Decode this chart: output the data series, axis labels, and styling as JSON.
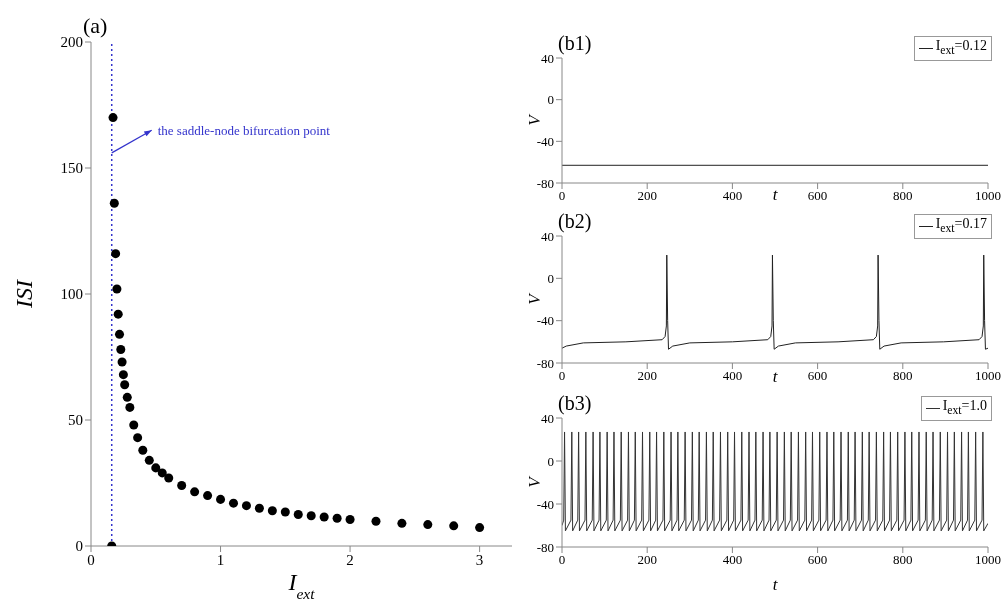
{
  "chart_data": [
    {
      "type": "scatter",
      "title": "(a)",
      "xlabel": "I$_{ext}$",
      "ylabel": "ISI",
      "color": "#000000",
      "marker": "circle",
      "x": [
        0.16,
        0.17,
        0.18,
        0.19,
        0.2,
        0.21,
        0.22,
        0.23,
        0.24,
        0.25,
        0.26,
        0.28,
        0.3,
        0.33,
        0.36,
        0.4,
        0.45,
        0.5,
        0.55,
        0.6,
        0.7,
        0.8,
        0.9,
        1.0,
        1.1,
        1.2,
        1.3,
        1.4,
        1.5,
        1.6,
        1.7,
        1.8,
        1.9,
        2.0,
        2.2,
        2.4,
        2.6,
        2.8,
        3.0
      ],
      "values": [
        0,
        170,
        136,
        116,
        102,
        92,
        84,
        78,
        73,
        68,
        64,
        59,
        55,
        48,
        43,
        38,
        34,
        31,
        29,
        27,
        24,
        21.5,
        20,
        18.5,
        17,
        16,
        15,
        14,
        13.5,
        12.5,
        12,
        11.5,
        11,
        10.5,
        9.8,
        9,
        8.5,
        8,
        7.3
      ],
      "xlim": [
        0,
        3.25
      ],
      "xticks": [
        0,
        1,
        2,
        3
      ],
      "ylim": [
        0,
        200
      ],
      "yticks": [
        0,
        50,
        100,
        150,
        200
      ],
      "ref_lines": [
        {
          "axis": "x",
          "value": 0.16,
          "label": "the saddle-node bifurcation point",
          "color": "#3333cc",
          "line_style": "dotted"
        }
      ]
    },
    {
      "type": "line",
      "title": "(b1)",
      "xlabel": "t",
      "ylabel": "V",
      "xlim": [
        0,
        1000
      ],
      "xticks": [
        0,
        200,
        400,
        600,
        800,
        1000
      ],
      "ylim": [
        -80,
        40
      ],
      "yticks": [
        -80,
        -40,
        0,
        40
      ],
      "legend": "top right",
      "line_style": "solid",
      "series": [
        {
          "name": "I$_{ext}$=0.12",
          "color": "#222222",
          "x": [
            0,
            1000
          ],
          "values": [
            -63,
            -63
          ]
        }
      ]
    },
    {
      "type": "line",
      "title": "(b2)",
      "xlabel": "t",
      "ylabel": "V",
      "xlim": [
        0,
        1000
      ],
      "xticks": [
        0,
        200,
        400,
        600,
        800,
        1000
      ],
      "ylim": [
        -80,
        40
      ],
      "yticks": [
        -80,
        -40,
        0,
        40
      ],
      "legend": "top right",
      "line_style": "solid",
      "series": [
        {
          "name": "I$_{ext}$=0.17",
          "color": "#222222",
          "x": [
            0,
            10,
            50,
            150,
            235,
            242,
            245,
            246,
            248,
            250,
            260,
            300,
            400,
            483,
            490,
            493,
            494,
            496,
            498,
            508,
            548,
            648,
            731,
            738,
            741,
            742,
            744,
            746,
            756,
            796,
            896,
            979,
            986,
            989,
            990,
            992,
            994,
            1000
          ],
          "values": [
            -66,
            -64,
            -61,
            -60,
            -58,
            -55,
            -45,
            22,
            -40,
            -67,
            -64,
            -61,
            -60,
            -58,
            -55,
            -45,
            22,
            -40,
            -67,
            -64,
            -61,
            -60,
            -58,
            -55,
            -45,
            22,
            -40,
            -67,
            -64,
            -61,
            -60,
            -58,
            -55,
            -45,
            22,
            -40,
            -67,
            -66
          ]
        }
      ]
    },
    {
      "type": "line",
      "title": "(b3)",
      "xlabel": "t",
      "ylabel": "V",
      "xlim": [
        0,
        1000
      ],
      "xticks": [
        0,
        200,
        400,
        600,
        800,
        1000
      ],
      "ylim": [
        -80,
        40
      ],
      "yticks": [
        -80,
        -40,
        0,
        40
      ],
      "legend": "top right",
      "line_style": "solid",
      "series": [
        {
          "name": "I$_{ext}$=1.0",
          "color": "#333333",
          "x": [
            0,
            4,
            6,
            8,
            21,
            23,
            25,
            37,
            39,
            41,
            54,
            56,
            58,
            71,
            73,
            75,
            87,
            89,
            91,
            104,
            106,
            108,
            120,
            122,
            124,
            137,
            139,
            141,
            154,
            156,
            158,
            170,
            172,
            174,
            187,
            189,
            191,
            204,
            206,
            208,
            220,
            222,
            224,
            237,
            239,
            241,
            254,
            256,
            258,
            270,
            272,
            274,
            287,
            289,
            291,
            304,
            306,
            308,
            320,
            322,
            324,
            337,
            339,
            341,
            353,
            355,
            357,
            370,
            372,
            374,
            387,
            389,
            391,
            403,
            405,
            407,
            420,
            422,
            424,
            437,
            439,
            441,
            453,
            455,
            457,
            470,
            472,
            474,
            486,
            488,
            490,
            503,
            505,
            507,
            520,
            522,
            524,
            536,
            538,
            540,
            553,
            555,
            557,
            570,
            572,
            574,
            586,
            588,
            590,
            603,
            605,
            607,
            620,
            622,
            624,
            636,
            638,
            640,
            653,
            655,
            657,
            670,
            672,
            674,
            686,
            688,
            690,
            703,
            705,
            707,
            719,
            721,
            723,
            736,
            738,
            740,
            753,
            755,
            757,
            769,
            771,
            773,
            786,
            788,
            790,
            803,
            805,
            807,
            819,
            821,
            823,
            836,
            838,
            840,
            853,
            855,
            857,
            869,
            871,
            873,
            886,
            888,
            890,
            903,
            905,
            907,
            919,
            921,
            923,
            936,
            938,
            940,
            952,
            954,
            956,
            969,
            971,
            973,
            986,
            988,
            990,
            1000
          ],
          "values": [
            -60,
            -55,
            27,
            -65,
            -55,
            27,
            -65,
            -55,
            27,
            -65,
            -55,
            27,
            -65,
            -55,
            27,
            -65,
            -55,
            27,
            -65,
            -55,
            27,
            -65,
            -55,
            27,
            -65,
            -55,
            27,
            -65,
            -55,
            27,
            -65,
            -55,
            27,
            -65,
            -55,
            27,
            -65,
            -55,
            27,
            -65,
            -55,
            27,
            -65,
            -55,
            27,
            -65,
            -55,
            27,
            -65,
            -55,
            27,
            -65,
            -55,
            27,
            -65,
            -55,
            27,
            -65,
            -55,
            27,
            -65,
            -55,
            27,
            -65,
            -55,
            27,
            -65,
            -55,
            27,
            -65,
            -55,
            27,
            -65,
            -55,
            27,
            -65,
            -55,
            27,
            -65,
            -55,
            27,
            -65,
            -55,
            27,
            -65,
            -55,
            27,
            -65,
            -55,
            27,
            -65,
            -55,
            27,
            -65,
            -55,
            27,
            -65,
            -55,
            27,
            -65,
            -55,
            27,
            -65,
            -55,
            27,
            -65,
            -55,
            27,
            -65,
            -55,
            27,
            -65,
            -55,
            27,
            -65,
            -55,
            27,
            -65,
            -55,
            27,
            -65,
            -55,
            27,
            -65,
            -55,
            27,
            -65,
            -55,
            27,
            -65,
            -55,
            27,
            -65,
            -55,
            27,
            -65,
            -55,
            27,
            -65,
            -55,
            27,
            -65,
            -55,
            27,
            -65,
            -55,
            27,
            -65,
            -55,
            27,
            -65,
            -55,
            27,
            -65,
            -55,
            27,
            -65,
            -55,
            27,
            -65,
            -55,
            27,
            -65,
            -55,
            27,
            -65,
            -55,
            27,
            -65,
            -55,
            27,
            -65,
            -55,
            27,
            -65,
            -55,
            27,
            -65,
            -55,
            27,
            -65,
            -58
          ]
        }
      ]
    }
  ]
}
